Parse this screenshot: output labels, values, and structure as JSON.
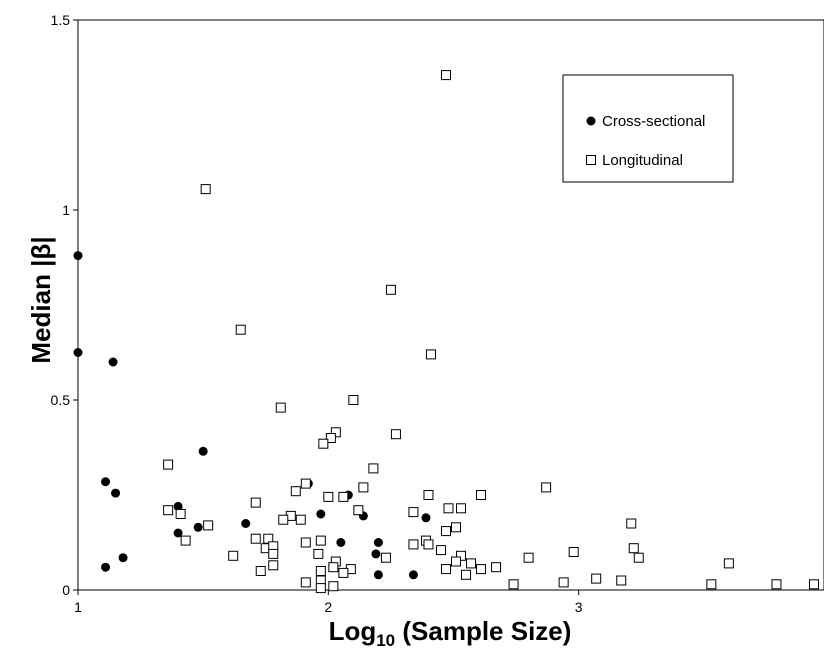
{
  "chart_data": {
    "type": "scatter",
    "title": "",
    "xlabel": "Log",
    "xlabel_sub": "10",
    "xlabel_rest": " (Sample Size)",
    "ylabel": "Median |β|",
    "xlim": [
      1,
      3.98
    ],
    "ylim": [
      0,
      1.5
    ],
    "x_ticks": [
      {
        "value": 1,
        "label": "1"
      },
      {
        "value": 2,
        "label": "2"
      },
      {
        "value": 3,
        "label": "3"
      }
    ],
    "y_ticks": [
      {
        "value": 0,
        "label": "0"
      },
      {
        "value": 0.5,
        "label": "0.5"
      },
      {
        "value": 1,
        "label": "1"
      },
      {
        "value": 1.5,
        "label": "1.5"
      }
    ],
    "grid": false,
    "legend_position": "top-right",
    "series": [
      {
        "name": "Cross-sectional",
        "marker": "filled-circle",
        "color": "#000000",
        "points": [
          [
            1.0,
            0.88
          ],
          [
            1.0,
            0.625
          ],
          [
            1.14,
            0.6
          ],
          [
            1.5,
            0.365
          ],
          [
            1.11,
            0.285
          ],
          [
            1.15,
            0.255
          ],
          [
            1.4,
            0.22
          ],
          [
            1.4,
            0.15
          ],
          [
            1.48,
            0.165
          ],
          [
            1.67,
            0.175
          ],
          [
            1.18,
            0.085
          ],
          [
            1.11,
            0.06
          ],
          [
            1.92,
            0.28
          ],
          [
            1.97,
            0.2
          ],
          [
            2.08,
            0.25
          ],
          [
            2.14,
            0.195
          ],
          [
            2.05,
            0.125
          ],
          [
            2.2,
            0.125
          ],
          [
            2.19,
            0.095
          ],
          [
            2.2,
            0.04
          ],
          [
            2.39,
            0.19
          ],
          [
            2.34,
            0.04
          ],
          [
            1.97,
            0.02
          ]
        ]
      },
      {
        "name": "Longitudinal",
        "marker": "open-square",
        "color": "#000000",
        "points": [
          [
            2.47,
            1.355
          ],
          [
            1.51,
            1.055
          ],
          [
            2.25,
            0.79
          ],
          [
            1.65,
            0.685
          ],
          [
            2.41,
            0.62
          ],
          [
            2.1,
            0.5
          ],
          [
            1.81,
            0.48
          ],
          [
            2.27,
            0.41
          ],
          [
            2.03,
            0.415
          ],
          [
            2.01,
            0.4
          ],
          [
            1.98,
            0.385
          ],
          [
            1.36,
            0.33
          ],
          [
            2.18,
            0.32
          ],
          [
            1.91,
            0.28
          ],
          [
            2.87,
            0.27
          ],
          [
            2.14,
            0.27
          ],
          [
            1.87,
            0.26
          ],
          [
            2.61,
            0.25
          ],
          [
            2.4,
            0.25
          ],
          [
            2.0,
            0.245
          ],
          [
            2.06,
            0.245
          ],
          [
            1.71,
            0.23
          ],
          [
            2.12,
            0.21
          ],
          [
            1.36,
            0.21
          ],
          [
            2.34,
            0.205
          ],
          [
            2.48,
            0.215
          ],
          [
            2.53,
            0.215
          ],
          [
            1.41,
            0.2
          ],
          [
            1.85,
            0.195
          ],
          [
            1.82,
            0.185
          ],
          [
            1.89,
            0.185
          ],
          [
            3.21,
            0.175
          ],
          [
            1.52,
            0.17
          ],
          [
            2.51,
            0.165
          ],
          [
            2.47,
            0.155
          ],
          [
            1.71,
            0.135
          ],
          [
            1.76,
            0.135
          ],
          [
            1.91,
            0.125
          ],
          [
            1.97,
            0.13
          ],
          [
            2.39,
            0.13
          ],
          [
            1.43,
            0.13
          ],
          [
            2.4,
            0.12
          ],
          [
            2.34,
            0.12
          ],
          [
            1.75,
            0.11
          ],
          [
            1.78,
            0.115
          ],
          [
            3.22,
            0.11
          ],
          [
            2.45,
            0.105
          ],
          [
            2.53,
            0.09
          ],
          [
            1.96,
            0.095
          ],
          [
            1.78,
            0.095
          ],
          [
            1.62,
            0.09
          ],
          [
            2.98,
            0.1
          ],
          [
            2.23,
            0.085
          ],
          [
            2.51,
            0.075
          ],
          [
            2.03,
            0.075
          ],
          [
            3.24,
            0.085
          ],
          [
            2.8,
            0.085
          ],
          [
            2.57,
            0.07
          ],
          [
            3.6,
            0.07
          ],
          [
            1.78,
            0.065
          ],
          [
            2.02,
            0.06
          ],
          [
            2.09,
            0.055
          ],
          [
            2.61,
            0.055
          ],
          [
            2.47,
            0.055
          ],
          [
            2.67,
            0.06
          ],
          [
            1.97,
            0.05
          ],
          [
            2.55,
            0.04
          ],
          [
            2.06,
            0.045
          ],
          [
            1.73,
            0.05
          ],
          [
            3.07,
            0.03
          ],
          [
            3.17,
            0.025
          ],
          [
            2.94,
            0.02
          ],
          [
            2.74,
            0.015
          ],
          [
            3.53,
            0.015
          ],
          [
            3.79,
            0.015
          ],
          [
            3.94,
            0.015
          ],
          [
            1.91,
            0.02
          ],
          [
            1.97,
            0.025
          ],
          [
            2.02,
            0.01
          ],
          [
            1.97,
            0.005
          ]
        ]
      }
    ]
  }
}
